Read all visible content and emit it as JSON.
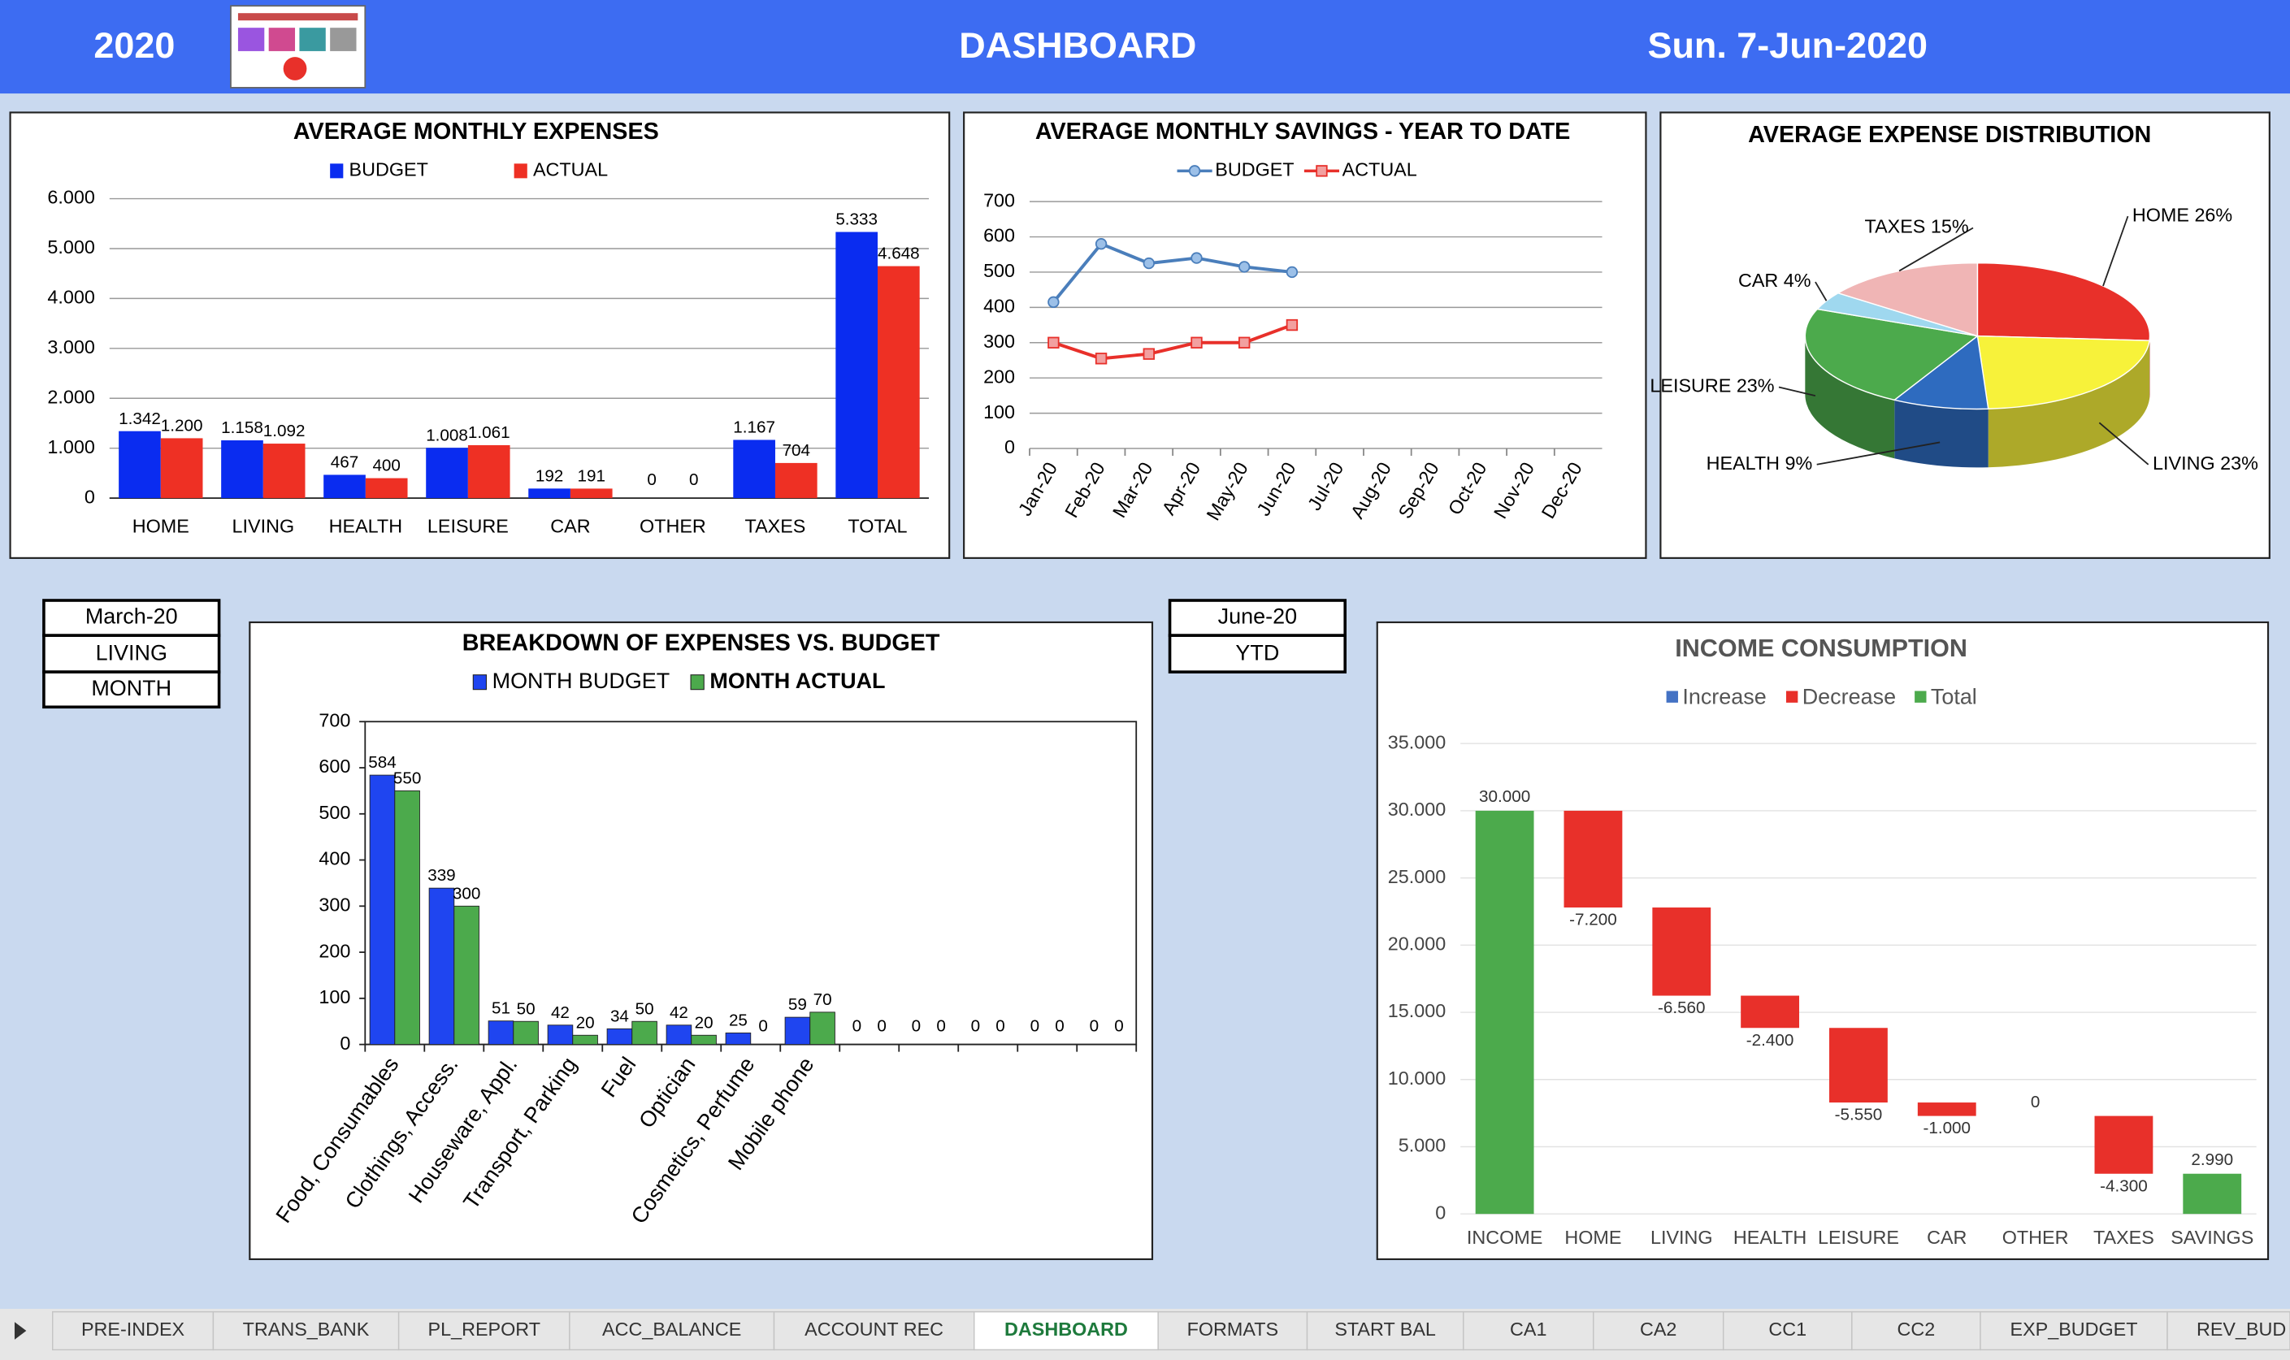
{
  "header": {
    "year": "2020",
    "title": "DASHBOARD",
    "date": "Sun. 7-Jun-2020"
  },
  "chart_data": [
    {
      "type": "bar",
      "title": "AVERAGE MONTHLY EXPENSES",
      "categories": [
        "HOME",
        "LIVING",
        "HEALTH",
        "LEISURE",
        "CAR",
        "OTHER",
        "TAXES",
        "TOTAL"
      ],
      "series": [
        {
          "name": "BUDGET",
          "color": "#0a2cf0",
          "values": [
            1342,
            1158,
            467,
            1008,
            192,
            0,
            1167,
            5333
          ],
          "value_labels": [
            "1.342",
            "1.158",
            "467",
            "1.008",
            "192",
            "0",
            "1.167",
            "5.333"
          ]
        },
        {
          "name": "ACTUAL",
          "color": "#ee3024",
          "values": [
            1200,
            1092,
            400,
            1061,
            191,
            0,
            704,
            4648
          ],
          "value_labels": [
            "1.200",
            "1.092",
            "400",
            "1.061",
            "191",
            "0",
            "704",
            "4.648"
          ]
        }
      ],
      "ylim": [
        0,
        6000
      ],
      "yticks": [
        0,
        {
          "value": 1000,
          "label": "1.000"
        },
        {
          "value": 2000,
          "label": "2.000"
        },
        {
          "value": 3000,
          "label": "3.000"
        },
        {
          "value": 4000,
          "label": "4.000"
        },
        {
          "value": 5000,
          "label": "5.000"
        },
        {
          "value": 6000,
          "label": "6.000"
        }
      ],
      "grid": true
    },
    {
      "type": "line",
      "title": "AVERAGE MONTHLY SAVINGS - YEAR TO DATE",
      "categories": [
        "Jan-20",
        "Feb-20",
        "Mar-20",
        "Apr-20",
        "May-20",
        "Jun-20",
        "Jul-20",
        "Aug-20",
        "Sep-20",
        "Oct-20",
        "Nov-20",
        "Dec-20"
      ],
      "series": [
        {
          "name": "BUDGET",
          "color": "#4a7ebb",
          "marker": "circle",
          "values": [
            415,
            580,
            525,
            540,
            515,
            500,
            null,
            null,
            null,
            null,
            null,
            null
          ]
        },
        {
          "name": "ACTUAL",
          "color": "#e8302a",
          "marker": "square",
          "values": [
            300,
            255,
            268,
            300,
            300,
            350,
            null,
            null,
            null,
            null,
            null,
            null
          ]
        }
      ],
      "ylim": [
        0,
        700
      ],
      "yticks": [
        0,
        100,
        200,
        300,
        400,
        500,
        600,
        700
      ],
      "grid": true
    },
    {
      "type": "pie",
      "title": "AVERAGE EXPENSE DISTRIBUTION",
      "values": [
        26,
        23,
        9,
        23,
        4,
        15
      ],
      "value_labels": [
        "HOME 26%",
        "LIVING 23%",
        "HEALTH 9%",
        "LEISURE 23%",
        "CAR 4%",
        "TAXES 15%"
      ],
      "colors": [
        "#e8302a",
        "#f7f23a",
        "#2e6bbf",
        "#4caa4c",
        "#9fd8ef",
        "#f0b5b5"
      ]
    },
    {
      "type": "bar",
      "title": "BREAKDOWN OF EXPENSES VS. BUDGET",
      "categories": [
        "Food, Consumables",
        "Clothings, Access.",
        "Houseware, Appl.",
        "Transport, Parking",
        "Fuel",
        "Optician",
        "Cosmetics, Perfume",
        "Mobile phone",
        null,
        null,
        null,
        null,
        null
      ],
      "series": [
        {
          "name": "MONTH BUDGET",
          "color": "#1f45f0",
          "values": [
            584,
            339,
            51,
            42,
            34,
            42,
            25,
            59,
            0,
            0,
            0,
            0,
            0
          ]
        },
        {
          "name": "MONTH ACTUAL",
          "color": "#4caa4c",
          "values": [
            550,
            300,
            50,
            20,
            50,
            20,
            0,
            70,
            0,
            0,
            0,
            0,
            0
          ]
        }
      ],
      "ylim": [
        0,
        700
      ],
      "yticks": [
        0,
        100,
        200,
        300,
        400,
        500,
        600,
        700
      ],
      "grid": false
    },
    {
      "type": "waterfall",
      "title": "INCOME CONSUMPTION",
      "categories": [
        "INCOME",
        "HOME",
        "LIVING",
        "HEALTH",
        "LEISURE",
        "CAR",
        "OTHER",
        "TAXES",
        "SAVINGS"
      ],
      "values": [
        30000,
        -7200,
        -6560,
        -2400,
        -5550,
        -1000,
        0,
        -4300,
        2990
      ],
      "value_labels": [
        "30.000",
        "-7.200",
        "-6.560",
        "-2.400",
        "-5.550",
        "-1.000",
        "0",
        "-4.300",
        "2.990"
      ],
      "is_total": [
        true,
        false,
        false,
        false,
        false,
        false,
        false,
        false,
        true
      ],
      "legend": [
        {
          "name": "Increase",
          "color": "#4472c4"
        },
        {
          "name": "Decrease",
          "color": "#e8302a"
        },
        {
          "name": "Total",
          "color": "#4caa4c"
        }
      ],
      "ylim": [
        0,
        35000
      ],
      "yticks": [
        0,
        {
          "value": 5000,
          "label": "5.000"
        },
        {
          "value": 10000,
          "label": "10.000"
        },
        {
          "value": 15000,
          "label": "15.000"
        },
        {
          "value": 20000,
          "label": "20.000"
        },
        {
          "value": 25000,
          "label": "25.000"
        },
        {
          "value": 30000,
          "label": "30.000"
        },
        {
          "value": 35000,
          "label": "35.000"
        }
      ],
      "grid": true
    }
  ],
  "selectors": {
    "left": [
      "March-20",
      "LIVING",
      "MONTH"
    ],
    "right": [
      "June-20",
      "YTD"
    ]
  },
  "tabs": {
    "items": [
      "PRE-INDEX",
      "TRANS_BANK",
      "PL_REPORT",
      "ACC_BALANCE",
      "ACCOUNT REC",
      "DASHBOARD",
      "FORMATS",
      "START BAL",
      "CA1",
      "CA2",
      "CC1",
      "CC2",
      "EXP_BUDGET",
      "REV_BUD"
    ],
    "active": 5
  }
}
